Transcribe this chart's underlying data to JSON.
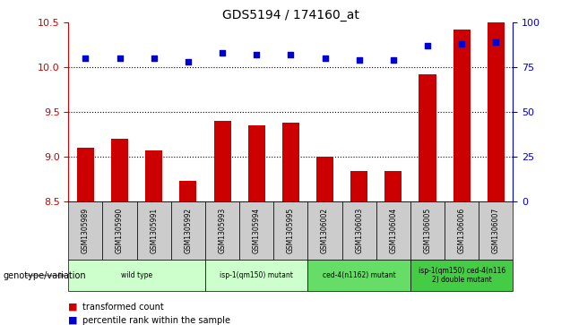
{
  "title": "GDS5194 / 174160_at",
  "samples": [
    "GSM1305989",
    "GSM1305990",
    "GSM1305991",
    "GSM1305992",
    "GSM1305993",
    "GSM1305994",
    "GSM1305995",
    "GSM1306002",
    "GSM1306003",
    "GSM1306004",
    "GSM1306005",
    "GSM1306006",
    "GSM1306007"
  ],
  "transformed_count": [
    9.1,
    9.2,
    9.07,
    8.73,
    9.4,
    9.35,
    9.38,
    9.0,
    8.84,
    8.84,
    9.92,
    10.42,
    10.5
  ],
  "percentile_rank": [
    80,
    80,
    80,
    78,
    83,
    82,
    82,
    80,
    79,
    79,
    87,
    88,
    89
  ],
  "ylim_left": [
    8.5,
    10.5
  ],
  "ylim_right": [
    0,
    100
  ],
  "yticks_left": [
    8.5,
    9.0,
    9.5,
    10.0,
    10.5
  ],
  "yticks_right": [
    0,
    25,
    50,
    75,
    100
  ],
  "grid_lines": [
    9.0,
    9.5,
    10.0
  ],
  "bar_color": "#cc0000",
  "dot_color": "#0000cc",
  "bar_bottom": 8.5,
  "groups": [
    {
      "label": "wild type",
      "indices": [
        0,
        1,
        2,
        3
      ],
      "color": "#ccffcc"
    },
    {
      "label": "isp-1(qm150) mutant",
      "indices": [
        4,
        5,
        6
      ],
      "color": "#ccffcc"
    },
    {
      "label": "ced-4(n1162) mutant",
      "indices": [
        7,
        8,
        9
      ],
      "color": "#66dd66"
    },
    {
      "label": "isp-1(qm150) ced-4(n116\n2) double mutant",
      "indices": [
        10,
        11,
        12
      ],
      "color": "#44cc44"
    }
  ],
  "legend_label_bar": "transformed count",
  "legend_label_dot": "percentile rank within the sample",
  "xlabel_label": "genotype/variation",
  "right_axis_color": "#0000cc",
  "left_axis_color": "#cc0000",
  "sample_cell_color": "#cccccc",
  "background_color": "#ffffff"
}
